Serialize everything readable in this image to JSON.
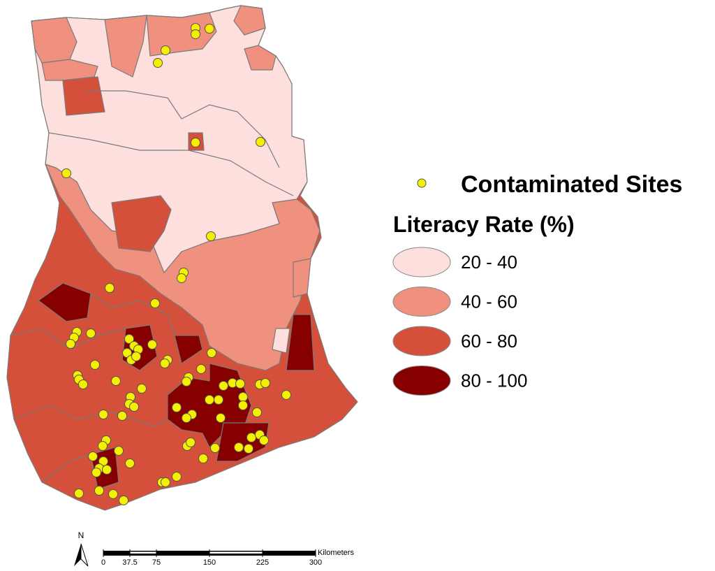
{
  "legend": {
    "point_label": "Contaminated Sites",
    "title": "Literacy Rate (%)",
    "classes": [
      {
        "label": "20 - 40",
        "color": "#fde0de"
      },
      {
        "label": "40 - 60",
        "color": "#f0917f"
      },
      {
        "label": "60 - 80",
        "color": "#d4503a"
      },
      {
        "label": "80 - 100",
        "color": "#870000"
      }
    ]
  },
  "scale_bar": {
    "unit": "Kilometers",
    "ticks": [
      0,
      37.5,
      75,
      150,
      225,
      300
    ]
  },
  "north_arrow": {
    "label": "N"
  }
}
